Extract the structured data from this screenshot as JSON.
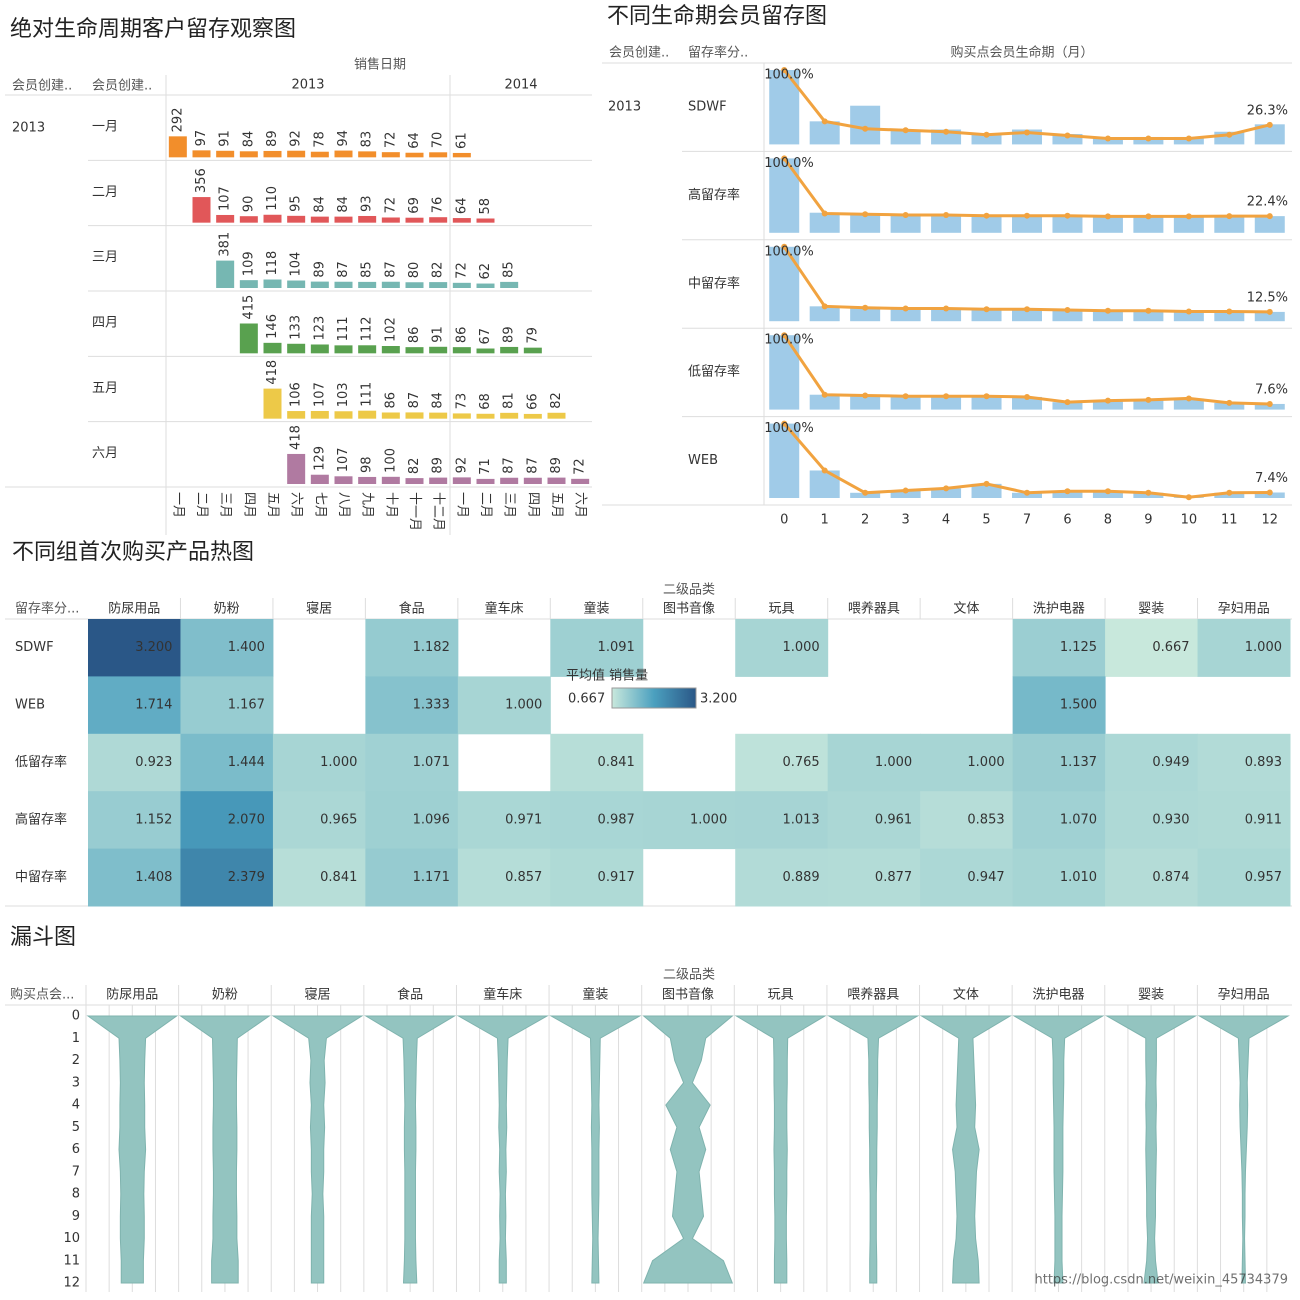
{
  "chart_data": [
    {
      "type": "cohort_bar",
      "title": "绝对生命周期客户留存观察图",
      "column_header": "销售日期",
      "row_headers": [
        "会员创建..",
        "会员创建.."
      ],
      "row_year": "2013",
      "years": [
        "2013",
        "2014"
      ],
      "categories": [
        "一月",
        "二月",
        "三月",
        "四月",
        "五月",
        "六月",
        "七月",
        "八月",
        "九月",
        "十月",
        "十一月",
        "十二月",
        "一月",
        "二月",
        "三月",
        "四月",
        "五月",
        "六月"
      ],
      "series": [
        {
          "name": "一月",
          "color": "#f28e2b",
          "values": [
            292,
            97,
            91,
            84,
            89,
            92,
            78,
            94,
            83,
            72,
            64,
            70,
            61,
            null,
            null,
            null,
            null,
            null
          ]
        },
        {
          "name": "二月",
          "color": "#e15759",
          "values": [
            null,
            356,
            107,
            90,
            110,
            95,
            84,
            84,
            93,
            72,
            69,
            76,
            64,
            58,
            null,
            null,
            null,
            null
          ]
        },
        {
          "name": "三月",
          "color": "#76b7b2",
          "values": [
            null,
            null,
            381,
            109,
            118,
            104,
            89,
            87,
            85,
            87,
            80,
            82,
            72,
            62,
            85,
            null,
            null,
            null
          ]
        },
        {
          "name": "四月",
          "color": "#59a14f",
          "values": [
            null,
            null,
            null,
            415,
            146,
            133,
            123,
            111,
            112,
            102,
            86,
            91,
            86,
            67,
            89,
            79,
            null,
            null
          ]
        },
        {
          "name": "五月",
          "color": "#edc948",
          "values": [
            null,
            null,
            null,
            null,
            418,
            106,
            107,
            103,
            111,
            86,
            87,
            84,
            73,
            68,
            81,
            66,
            82,
            null
          ]
        },
        {
          "name": "六月",
          "color": "#b07aa1",
          "values": [
            null,
            null,
            null,
            null,
            null,
            418,
            129,
            107,
            98,
            100,
            82,
            89,
            92,
            71,
            87,
            87,
            89,
            72
          ]
        }
      ]
    },
    {
      "type": "retention",
      "title": "不同生命期会员留存图",
      "row_headers": [
        "会员创建..",
        "留存率分.."
      ],
      "x_label": "购买点会员生命期（月）",
      "row_year": "2013",
      "categories": [
        0,
        1,
        2,
        3,
        4,
        5,
        7,
        6,
        8,
        9,
        10,
        11,
        12
      ],
      "ylim": [
        0,
        100
      ],
      "bar_color": "#a0cbe8",
      "line_color": "#f1a340",
      "series": [
        {
          "name": "SDWF",
          "bars": [
            100,
            31,
            52,
            19,
            20,
            14,
            20,
            14,
            9,
            10,
            10,
            17,
            27
          ],
          "values": [
            100,
            31,
            21,
            19,
            17,
            13,
            16,
            12,
            8,
            8,
            8,
            13,
            26.3
          ],
          "value_labels": [
            "100.0%",
            null,
            null,
            null,
            null,
            null,
            null,
            null,
            null,
            null,
            null,
            null,
            "26.3%"
          ]
        },
        {
          "name": "高留存率",
          "bars": [
            100,
            27,
            25,
            24,
            24,
            23,
            23,
            23,
            22,
            22,
            22,
            22,
            22.4
          ],
          "values": [
            100,
            26,
            25,
            24,
            24,
            23,
            23,
            23,
            22,
            22,
            22,
            22.4,
            22.4
          ],
          "value_labels": [
            "100.0%",
            null,
            null,
            null,
            null,
            null,
            null,
            null,
            null,
            null,
            null,
            null,
            "22.4%"
          ]
        },
        {
          "name": "中留存率",
          "bars": [
            100,
            20,
            18,
            17,
            17,
            16,
            16,
            15,
            14,
            14,
            13,
            13,
            12.5
          ],
          "values": [
            100,
            20,
            18,
            17,
            17,
            16,
            16,
            15,
            14,
            14,
            13,
            13,
            12.5
          ],
          "value_labels": [
            "100.0%",
            null,
            null,
            null,
            null,
            null,
            null,
            null,
            null,
            null,
            null,
            null,
            "12.5%"
          ]
        },
        {
          "name": "低留存率",
          "bars": [
            100,
            20,
            19,
            18,
            18,
            18,
            17,
            10,
            12,
            13,
            15,
            9,
            7.6
          ],
          "values": [
            100,
            20,
            19,
            18,
            18,
            18,
            17,
            10,
            12,
            13,
            15,
            9,
            7.6
          ],
          "value_labels": [
            "100.0%",
            null,
            null,
            null,
            null,
            null,
            null,
            null,
            null,
            null,
            null,
            null,
            "7.6%"
          ]
        },
        {
          "name": "WEB",
          "bars": [
            100,
            37,
            7,
            10,
            13,
            19,
            7,
            9,
            9,
            7,
            1,
            7,
            7.4
          ],
          "values": [
            100,
            37,
            7,
            10,
            13,
            19,
            7,
            9,
            9,
            7,
            1,
            7,
            7.4
          ],
          "value_labels": [
            "100.0%",
            null,
            null,
            null,
            null,
            null,
            null,
            null,
            null,
            null,
            null,
            null,
            "7.4%"
          ]
        }
      ]
    },
    {
      "type": "heatmap",
      "title": "不同组首次购买产品热图",
      "column_header": "二级品类",
      "row_header": "留存率分...",
      "categories": [
        "防尿用品",
        "奶粉",
        "寝居",
        "食品",
        "童车床",
        "童装",
        "图书音像",
        "玩具",
        "喂养器具",
        "文体",
        "洗护电器",
        "婴装",
        "孕妇用品"
      ],
      "rows": [
        "SDWF",
        "WEB",
        "低留存率",
        "高留存率",
        "中留存率"
      ],
      "values": [
        [
          3.2,
          1.4,
          null,
          1.182,
          null,
          1.091,
          null,
          1,
          null,
          null,
          1.125,
          0.667,
          1
        ],
        [
          1.714,
          1.167,
          null,
          1.333,
          1,
          null,
          null,
          null,
          null,
          null,
          1.5,
          null,
          null
        ],
        [
          0.923,
          1.444,
          1,
          1.071,
          null,
          0.841,
          null,
          0.765,
          1,
          1,
          1.137,
          0.949,
          0.893
        ],
        [
          1.152,
          2.07,
          0.965,
          1.096,
          0.971,
          0.987,
          1,
          1.013,
          0.961,
          0.853,
          1.07,
          0.93,
          0.911
        ],
        [
          1.408,
          2.379,
          0.841,
          1.171,
          0.857,
          0.917,
          null,
          0.889,
          0.877,
          0.947,
          1.01,
          0.874,
          0.957
        ]
      ],
      "value_labels": [
        [
          "3.200",
          "1.400",
          null,
          "1.182",
          null,
          "1.091",
          null,
          "1.000",
          null,
          null,
          "1.125",
          "0.667",
          "1.000"
        ],
        [
          "1.714",
          "1.167",
          null,
          "1.333",
          "1.000",
          null,
          null,
          null,
          null,
          null,
          "1.500",
          null,
          null
        ],
        [
          "0.923",
          "1.444",
          "1.000",
          "1.071",
          null,
          "0.841",
          null,
          "0.765",
          "1.000",
          "1.000",
          "1.137",
          "0.949",
          "0.893"
        ],
        [
          "1.152",
          "2.070",
          "0.965",
          "1.096",
          "0.971",
          "0.987",
          "1.000",
          "1.013",
          "0.961",
          "0.853",
          "1.070",
          "0.930",
          "0.911"
        ],
        [
          "1.408",
          "2.379",
          "0.841",
          "1.171",
          "0.857",
          "0.917",
          null,
          "0.889",
          "0.877",
          "0.947",
          "1.010",
          "0.874",
          "0.957"
        ]
      ],
      "legend_title": "平均值 销售量",
      "colorlim": [
        {
          "value": 0.667,
          "label": "0.667"
        },
        {
          "value": 3.2,
          "label": "3.200"
        }
      ],
      "colors": [
        "#c8e8dc",
        "#4ba0bf",
        "#2a5787"
      ]
    },
    {
      "type": "funnel",
      "title": "漏斗图",
      "column_header": "二级品类",
      "row_header": "购买点会...",
      "rows": [
        0,
        1,
        2,
        3,
        4,
        5,
        6,
        7,
        8,
        9,
        10,
        11,
        12
      ],
      "color": "#93c4c0",
      "series": [
        {
          "name": "防尿用品",
          "values": [
            100,
            30,
            28,
            27,
            28,
            28,
            30,
            27,
            26,
            27,
            27,
            25,
            25
          ]
        },
        {
          "name": "奶粉",
          "values": [
            100,
            28,
            27,
            26,
            26,
            27,
            27,
            26,
            26,
            27,
            27,
            30,
            30
          ]
        },
        {
          "name": "寝居",
          "values": [
            100,
            20,
            15,
            17,
            14,
            16,
            14,
            14,
            12,
            14,
            14,
            14,
            14
          ]
        },
        {
          "name": "食品",
          "values": [
            100,
            16,
            14,
            13,
            12,
            13,
            13,
            12,
            12,
            12,
            12,
            13,
            15
          ]
        },
        {
          "name": "童车床",
          "values": [
            100,
            12,
            10,
            9,
            8,
            9,
            7,
            8,
            6,
            7,
            6,
            8,
            8
          ]
        },
        {
          "name": "童装",
          "values": [
            100,
            11,
            10,
            9,
            8,
            9,
            8,
            8,
            8,
            7,
            6,
            7,
            8
          ]
        },
        {
          "name": "图书音像",
          "values": [
            100,
            40,
            30,
            10,
            50,
            25,
            40,
            25,
            30,
            35,
            10,
            80,
            100
          ]
        },
        {
          "name": "玩具",
          "values": [
            100,
            16,
            15,
            15,
            14,
            14,
            15,
            14,
            14,
            13,
            13,
            14,
            14
          ]
        },
        {
          "name": "喂养器具",
          "values": [
            100,
            12,
            10,
            10,
            9,
            9,
            8,
            8,
            7,
            7,
            7,
            8,
            8
          ]
        },
        {
          "name": "文体",
          "values": [
            100,
            16,
            18,
            20,
            22,
            20,
            30,
            24,
            22,
            20,
            22,
            28,
            30
          ]
        },
        {
          "name": "洗护电器",
          "values": [
            100,
            14,
            12,
            12,
            11,
            10,
            10,
            10,
            9,
            8,
            8,
            8,
            10
          ]
        },
        {
          "name": "婴装",
          "values": [
            100,
            12,
            12,
            11,
            12,
            11,
            12,
            11,
            10,
            10,
            8,
            10,
            16
          ]
        },
        {
          "name": "孕妇用品",
          "values": [
            100,
            12,
            10,
            8,
            9,
            8,
            6,
            4,
            3,
            3,
            2,
            3,
            4
          ]
        }
      ]
    }
  ],
  "watermark": "https://blog.csdn.net/weixin_45734379"
}
